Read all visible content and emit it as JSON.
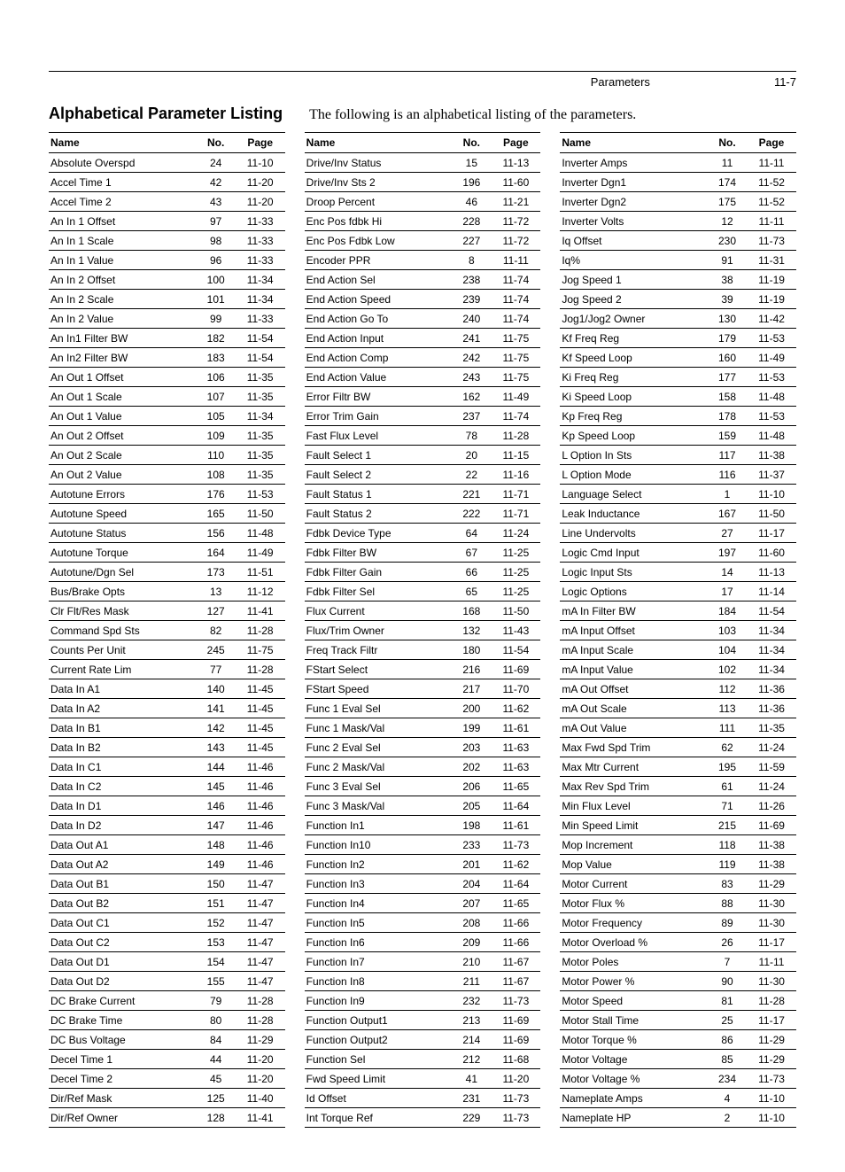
{
  "header": {
    "section_name": "Parameters",
    "page_num": "11-7"
  },
  "title": "Alphabetical Parameter Listing",
  "description": "The following is an alphabetical listing of the parameters.",
  "columns_header": {
    "name": "Name",
    "no": "No.",
    "page": "Page"
  },
  "tables": [
    [
      {
        "name": "Absolute Overspd",
        "no": "24",
        "page": "11-10"
      },
      {
        "name": "Accel Time 1",
        "no": "42",
        "page": "11-20"
      },
      {
        "name": "Accel Time 2",
        "no": "43",
        "page": "11-20"
      },
      {
        "name": "An In 1 Offset",
        "no": "97",
        "page": "11-33"
      },
      {
        "name": "An In 1 Scale",
        "no": "98",
        "page": "11-33"
      },
      {
        "name": "An In 1 Value",
        "no": "96",
        "page": "11-33"
      },
      {
        "name": "An In 2 Offset",
        "no": "100",
        "page": "11-34"
      },
      {
        "name": "An In 2 Scale",
        "no": "101",
        "page": "11-34"
      },
      {
        "name": "An In 2 Value",
        "no": "99",
        "page": "11-33"
      },
      {
        "name": "An In1 Filter BW",
        "no": "182",
        "page": "11-54"
      },
      {
        "name": "An In2 Filter BW",
        "no": "183",
        "page": "11-54"
      },
      {
        "name": "An Out 1 Offset",
        "no": "106",
        "page": "11-35"
      },
      {
        "name": "An Out 1 Scale",
        "no": "107",
        "page": "11-35"
      },
      {
        "name": "An Out 1 Value",
        "no": "105",
        "page": "11-34"
      },
      {
        "name": "An Out 2 Offset",
        "no": "109",
        "page": "11-35"
      },
      {
        "name": "An Out 2 Scale",
        "no": "110",
        "page": "11-35"
      },
      {
        "name": "An Out 2 Value",
        "no": "108",
        "page": "11-35"
      },
      {
        "name": "Autotune Errors",
        "no": "176",
        "page": "11-53"
      },
      {
        "name": "Autotune Speed",
        "no": "165",
        "page": "11-50"
      },
      {
        "name": "Autotune Status",
        "no": "156",
        "page": "11-48"
      },
      {
        "name": "Autotune Torque",
        "no": "164",
        "page": "11-49"
      },
      {
        "name": "Autotune/Dgn Sel",
        "no": "173",
        "page": "11-51"
      },
      {
        "name": "Bus/Brake Opts",
        "no": "13",
        "page": "11-12"
      },
      {
        "name": "Clr Flt/Res Mask",
        "no": "127",
        "page": "11-41"
      },
      {
        "name": "Command Spd Sts",
        "no": "82",
        "page": "11-28"
      },
      {
        "name": "Counts Per Unit",
        "no": "245",
        "page": "11-75"
      },
      {
        "name": "Current Rate Lim",
        "no": "77",
        "page": "11-28"
      },
      {
        "name": "Data In A1",
        "no": "140",
        "page": "11-45"
      },
      {
        "name": "Data In A2",
        "no": "141",
        "page": "11-45"
      },
      {
        "name": "Data In B1",
        "no": "142",
        "page": "11-45"
      },
      {
        "name": "Data In B2",
        "no": "143",
        "page": "11-45"
      },
      {
        "name": "Data In C1",
        "no": "144",
        "page": "11-46"
      },
      {
        "name": "Data In C2",
        "no": "145",
        "page": "11-46"
      },
      {
        "name": "Data In D1",
        "no": "146",
        "page": "11-46"
      },
      {
        "name": "Data In D2",
        "no": "147",
        "page": "11-46"
      },
      {
        "name": "Data Out A1",
        "no": "148",
        "page": "11-46"
      },
      {
        "name": "Data Out A2",
        "no": "149",
        "page": "11-46"
      },
      {
        "name": "Data Out B1",
        "no": "150",
        "page": "11-47"
      },
      {
        "name": "Data Out B2",
        "no": "151",
        "page": "11-47"
      },
      {
        "name": "Data Out C1",
        "no": "152",
        "page": "11-47"
      },
      {
        "name": "Data Out C2",
        "no": "153",
        "page": "11-47"
      },
      {
        "name": "Data Out D1",
        "no": "154",
        "page": "11-47"
      },
      {
        "name": "Data Out D2",
        "no": "155",
        "page": "11-47"
      },
      {
        "name": "DC Brake Current",
        "no": "79",
        "page": "11-28"
      },
      {
        "name": "DC Brake Time",
        "no": "80",
        "page": "11-28"
      },
      {
        "name": "DC Bus Voltage",
        "no": "84",
        "page": "11-29"
      },
      {
        "name": "Decel Time 1",
        "no": "44",
        "page": "11-20"
      },
      {
        "name": "Decel Time 2",
        "no": "45",
        "page": "11-20"
      },
      {
        "name": "Dir/Ref Mask",
        "no": "125",
        "page": "11-40"
      },
      {
        "name": "Dir/Ref Owner",
        "no": "128",
        "page": "11-41"
      }
    ],
    [
      {
        "name": "Drive/Inv Status",
        "no": "15",
        "page": "11-13"
      },
      {
        "name": "Drive/Inv Sts 2",
        "no": "196",
        "page": "11-60"
      },
      {
        "name": "Droop Percent",
        "no": "46",
        "page": "11-21"
      },
      {
        "name": "Enc Pos fdbk Hi",
        "no": "228",
        "page": "11-72"
      },
      {
        "name": "Enc Pos Fdbk Low",
        "no": "227",
        "page": "11-72"
      },
      {
        "name": "Encoder PPR",
        "no": "8",
        "page": "11-11"
      },
      {
        "name": "End Action Sel",
        "no": "238",
        "page": "11-74"
      },
      {
        "name": "End Action Speed",
        "no": "239",
        "page": "11-74"
      },
      {
        "name": "End Action Go To",
        "no": "240",
        "page": "11-74"
      },
      {
        "name": "End Action Input",
        "no": "241",
        "page": "11-75"
      },
      {
        "name": "End Action Comp",
        "no": "242",
        "page": "11-75"
      },
      {
        "name": "End Action Value",
        "no": "243",
        "page": "11-75"
      },
      {
        "name": "Error Filtr BW",
        "no": "162",
        "page": "11-49"
      },
      {
        "name": "Error Trim Gain",
        "no": "237",
        "page": "11-74"
      },
      {
        "name": "Fast Flux Level",
        "no": "78",
        "page": "11-28"
      },
      {
        "name": "Fault Select 1",
        "no": "20",
        "page": "11-15"
      },
      {
        "name": "Fault Select 2",
        "no": "22",
        "page": "11-16"
      },
      {
        "name": "Fault Status 1",
        "no": "221",
        "page": "11-71"
      },
      {
        "name": "Fault Status 2",
        "no": "222",
        "page": "11-71"
      },
      {
        "name": "Fdbk Device Type",
        "no": "64",
        "page": "11-24"
      },
      {
        "name": "Fdbk Filter BW",
        "no": "67",
        "page": "11-25"
      },
      {
        "name": "Fdbk Filter Gain",
        "no": "66",
        "page": "11-25"
      },
      {
        "name": "Fdbk Filter Sel",
        "no": "65",
        "page": "11-25"
      },
      {
        "name": "Flux Current",
        "no": "168",
        "page": "11-50"
      },
      {
        "name": "Flux/Trim Owner",
        "no": "132",
        "page": "11-43"
      },
      {
        "name": "Freq Track Filtr",
        "no": "180",
        "page": "11-54"
      },
      {
        "name": "FStart Select",
        "no": "216",
        "page": "11-69"
      },
      {
        "name": "FStart Speed",
        "no": "217",
        "page": "11-70"
      },
      {
        "name": "Func 1 Eval Sel",
        "no": "200",
        "page": "11-62"
      },
      {
        "name": "Func 1 Mask/Val",
        "no": "199",
        "page": "11-61"
      },
      {
        "name": "Func 2 Eval Sel",
        "no": "203",
        "page": "11-63"
      },
      {
        "name": "Func 2 Mask/Val",
        "no": "202",
        "page": "11-63"
      },
      {
        "name": "Func 3 Eval Sel",
        "no": "206",
        "page": "11-65"
      },
      {
        "name": "Func 3 Mask/Val",
        "no": "205",
        "page": "11-64"
      },
      {
        "name": "Function In1",
        "no": "198",
        "page": "11-61"
      },
      {
        "name": "Function In10",
        "no": "233",
        "page": "11-73"
      },
      {
        "name": "Function In2",
        "no": "201",
        "page": "11-62"
      },
      {
        "name": "Function In3",
        "no": "204",
        "page": "11-64"
      },
      {
        "name": "Function In4",
        "no": "207",
        "page": "11-65"
      },
      {
        "name": "Function In5",
        "no": "208",
        "page": "11-66"
      },
      {
        "name": "Function In6",
        "no": "209",
        "page": "11-66"
      },
      {
        "name": "Function In7",
        "no": "210",
        "page": "11-67"
      },
      {
        "name": "Function In8",
        "no": "211",
        "page": "11-67"
      },
      {
        "name": "Function In9",
        "no": "232",
        "page": "11-73"
      },
      {
        "name": "Function Output1",
        "no": "213",
        "page": "11-69"
      },
      {
        "name": "Function Output2",
        "no": "214",
        "page": "11-69"
      },
      {
        "name": "Function Sel",
        "no": "212",
        "page": "11-68"
      },
      {
        "name": "Fwd Speed Limit",
        "no": "41",
        "page": "11-20"
      },
      {
        "name": "Id Offset",
        "no": "231",
        "page": "11-73"
      },
      {
        "name": "Int Torque Ref",
        "no": "229",
        "page": "11-73"
      }
    ],
    [
      {
        "name": "Inverter Amps",
        "no": "11",
        "page": "11-11"
      },
      {
        "name": "Inverter Dgn1",
        "no": "174",
        "page": "11-52"
      },
      {
        "name": "Inverter Dgn2",
        "no": "175",
        "page": "11-52"
      },
      {
        "name": "Inverter Volts",
        "no": "12",
        "page": "11-11"
      },
      {
        "name": "Iq Offset",
        "no": "230",
        "page": "11-73"
      },
      {
        "name": "Iq%",
        "no": "91",
        "page": "11-31"
      },
      {
        "name": "Jog Speed 1",
        "no": "38",
        "page": "11-19"
      },
      {
        "name": "Jog Speed 2",
        "no": "39",
        "page": "11-19"
      },
      {
        "name": "Jog1/Jog2 Owner",
        "no": "130",
        "page": "11-42"
      },
      {
        "name": "Kf Freq Reg",
        "no": "179",
        "page": "11-53"
      },
      {
        "name": "Kf Speed Loop",
        "no": "160",
        "page": "11-49"
      },
      {
        "name": "Ki Freq Reg",
        "no": "177",
        "page": "11-53"
      },
      {
        "name": "Ki Speed Loop",
        "no": "158",
        "page": "11-48"
      },
      {
        "name": "Kp Freq Reg",
        "no": "178",
        "page": "11-53"
      },
      {
        "name": "Kp Speed Loop",
        "no": "159",
        "page": "11-48"
      },
      {
        "name": "L Option In Sts",
        "no": "117",
        "page": "11-38"
      },
      {
        "name": "L Option Mode",
        "no": "116",
        "page": "11-37"
      },
      {
        "name": "Language Select",
        "no": "1",
        "page": "11-10"
      },
      {
        "name": "Leak Inductance",
        "no": "167",
        "page": "11-50"
      },
      {
        "name": "Line Undervolts",
        "no": "27",
        "page": "11-17"
      },
      {
        "name": "Logic Cmd Input",
        "no": "197",
        "page": "11-60"
      },
      {
        "name": "Logic Input Sts",
        "no": "14",
        "page": "11-13"
      },
      {
        "name": "Logic Options",
        "no": "17",
        "page": "11-14"
      },
      {
        "name": "mA In Filter BW",
        "no": "184",
        "page": "11-54"
      },
      {
        "name": "mA Input Offset",
        "no": "103",
        "page": "11-34"
      },
      {
        "name": "mA Input Scale",
        "no": "104",
        "page": "11-34"
      },
      {
        "name": "mA Input Value",
        "no": "102",
        "page": "11-34"
      },
      {
        "name": "mA Out Offset",
        "no": "112",
        "page": "11-36"
      },
      {
        "name": "mA Out Scale",
        "no": "113",
        "page": "11-36"
      },
      {
        "name": "mA Out Value",
        "no": "111",
        "page": "11-35"
      },
      {
        "name": "Max Fwd Spd Trim",
        "no": "62",
        "page": "11-24"
      },
      {
        "name": "Max Mtr Current",
        "no": "195",
        "page": "11-59"
      },
      {
        "name": "Max Rev Spd Trim",
        "no": "61",
        "page": "11-24"
      },
      {
        "name": "Min Flux Level",
        "no": "71",
        "page": "11-26"
      },
      {
        "name": "Min Speed Limit",
        "no": "215",
        "page": "11-69"
      },
      {
        "name": "Mop Increment",
        "no": "118",
        "page": "11-38"
      },
      {
        "name": "Mop Value",
        "no": "119",
        "page": "11-38"
      },
      {
        "name": "Motor Current",
        "no": "83",
        "page": "11-29"
      },
      {
        "name": "Motor Flux %",
        "no": "88",
        "page": "11-30"
      },
      {
        "name": "Motor Frequency",
        "no": "89",
        "page": "11-30"
      },
      {
        "name": "Motor Overload %",
        "no": "26",
        "page": "11-17"
      },
      {
        "name": "Motor Poles",
        "no": "7",
        "page": "11-11"
      },
      {
        "name": "Motor Power %",
        "no": "90",
        "page": "11-30"
      },
      {
        "name": "Motor Speed",
        "no": "81",
        "page": "11-28"
      },
      {
        "name": "Motor Stall Time",
        "no": "25",
        "page": "11-17"
      },
      {
        "name": "Motor Torque %",
        "no": "86",
        "page": "11-29"
      },
      {
        "name": "Motor Voltage",
        "no": "85",
        "page": "11-29"
      },
      {
        "name": "Motor Voltage %",
        "no": "234",
        "page": "11-73"
      },
      {
        "name": "Nameplate Amps",
        "no": "4",
        "page": "11-10"
      },
      {
        "name": "Nameplate HP",
        "no": "2",
        "page": "11-10"
      }
    ]
  ]
}
